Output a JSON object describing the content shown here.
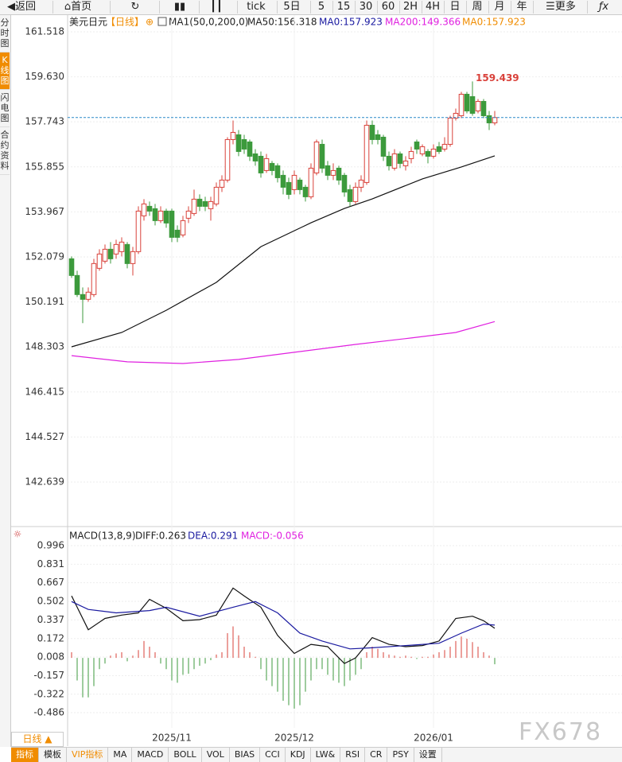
{
  "toolbar": [
    "返回",
    "首页",
    "tick",
    "5日",
    "5",
    "15",
    "30",
    "60",
    "2H",
    "4H",
    "日",
    "周",
    "月",
    "年",
    "更多"
  ],
  "sidebar": [
    "分时图",
    "K线图",
    "闪电图",
    "合约资料"
  ],
  "period_button": "日线 ▲",
  "tabs": [
    "指标",
    "模板",
    "VIP指标",
    "MA",
    "MACD",
    "BOLL",
    "VOL",
    "BIAS",
    "CCI",
    "KDJ",
    "LW&",
    "RSI",
    "CR",
    "PSY",
    "设置"
  ],
  "watermark": "FX678",
  "chart_data": [
    {
      "type": "candlestick",
      "title": "美元日元",
      "period": "【日线】",
      "legend": [
        {
          "text": "MA1(50,0,200,0)",
          "color": "#222222"
        },
        {
          "text": "MA50:156.318",
          "color": "#222222"
        },
        {
          "text": "MA0:157.923",
          "color": "#1a1aa0"
        },
        {
          "text": "MA200:149.366",
          "color": "#e020e0"
        },
        {
          "text": "MA0:157.923",
          "color": "#f08c00"
        }
      ],
      "categories": [
        null,
        null,
        null,
        null,
        null,
        null,
        null,
        null,
        null,
        null,
        null,
        null,
        null,
        null,
        null,
        null,
        null,
        null,
        "2025/11",
        null,
        null,
        null,
        null,
        null,
        null,
        null,
        null,
        null,
        null,
        null,
        null,
        null,
        null,
        null,
        null,
        null,
        null,
        null,
        null,
        null,
        "2025/12",
        null,
        null,
        null,
        null,
        null,
        null,
        null,
        null,
        null,
        null,
        null,
        null,
        null,
        null,
        null,
        null,
        null,
        null,
        null,
        null,
        null,
        null,
        null,
        null,
        "2026/01",
        null,
        null,
        null,
        null,
        null,
        null,
        null,
        null,
        null,
        null,
        null
      ],
      "candles": [
        [
          152.0,
          152.1,
          151.2,
          151.3
        ],
        [
          151.3,
          151.5,
          150.4,
          150.5
        ],
        [
          150.5,
          150.8,
          149.3,
          150.3
        ],
        [
          150.3,
          150.8,
          150.2,
          150.6
        ],
        [
          150.5,
          152.0,
          150.4,
          151.8
        ],
        [
          151.6,
          152.4,
          151.5,
          152.2
        ],
        [
          151.9,
          152.6,
          151.8,
          152.4
        ],
        [
          152.4,
          152.7,
          151.8,
          152.0
        ],
        [
          152.2,
          152.8,
          152.0,
          152.6
        ],
        [
          152.3,
          152.9,
          152.1,
          152.7
        ],
        [
          152.6,
          152.7,
          151.6,
          151.8
        ],
        [
          151.8,
          152.5,
          151.3,
          152.3
        ],
        [
          152.3,
          154.2,
          152.2,
          154.0
        ],
        [
          153.8,
          154.5,
          153.6,
          154.3
        ],
        [
          154.2,
          154.4,
          153.8,
          154.0
        ],
        [
          154.1,
          154.3,
          153.4,
          153.6
        ],
        [
          153.6,
          154.2,
          153.5,
          154.0
        ],
        [
          154.0,
          154.1,
          153.3,
          153.5
        ],
        [
          154.0,
          154.1,
          152.7,
          152.9
        ],
        [
          153.2,
          153.4,
          152.7,
          152.9
        ],
        [
          153.0,
          153.8,
          152.9,
          153.6
        ],
        [
          153.7,
          154.2,
          153.5,
          154.0
        ],
        [
          153.9,
          154.9,
          153.8,
          154.5
        ],
        [
          154.5,
          154.7,
          154.0,
          154.2
        ],
        [
          154.4,
          154.6,
          154.0,
          154.2
        ],
        [
          154.1,
          154.6,
          153.6,
          154.4
        ],
        [
          154.3,
          155.2,
          154.2,
          155.0
        ],
        [
          155.0,
          155.5,
          154.8,
          155.3
        ],
        [
          155.3,
          157.1,
          155.2,
          157.0
        ],
        [
          157.0,
          157.8,
          156.8,
          157.3
        ],
        [
          157.2,
          157.4,
          156.3,
          156.5
        ],
        [
          157.0,
          157.2,
          156.4,
          156.6
        ],
        [
          156.9,
          157.0,
          156.1,
          156.3
        ],
        [
          156.4,
          156.6,
          155.9,
          156.1
        ],
        [
          156.3,
          156.5,
          155.4,
          155.6
        ],
        [
          155.7,
          156.4,
          155.6,
          156.2
        ],
        [
          156.0,
          156.1,
          155.5,
          155.7
        ],
        [
          155.9,
          156.0,
          155.2,
          155.4
        ],
        [
          155.5,
          155.7,
          154.7,
          155.0
        ],
        [
          155.2,
          155.4,
          154.5,
          154.7
        ],
        [
          154.9,
          155.7,
          154.7,
          155.5
        ],
        [
          155.3,
          155.4,
          154.7,
          154.9
        ],
        [
          155.0,
          155.1,
          154.4,
          154.6
        ],
        [
          154.6,
          156.0,
          154.5,
          155.8
        ],
        [
          155.6,
          157.0,
          155.5,
          156.9
        ],
        [
          156.8,
          157.0,
          155.6,
          155.8
        ],
        [
          155.9,
          156.1,
          155.3,
          155.5
        ],
        [
          155.5,
          156.0,
          155.3,
          155.7
        ],
        [
          155.8,
          155.9,
          155.1,
          155.3
        ],
        [
          155.5,
          155.6,
          154.6,
          154.8
        ],
        [
          154.9,
          155.1,
          154.2,
          154.4
        ],
        [
          154.4,
          155.2,
          154.3,
          155.0
        ],
        [
          155.0,
          155.5,
          154.8,
          155.3
        ],
        [
          155.2,
          157.8,
          155.1,
          157.6
        ],
        [
          157.6,
          157.8,
          156.8,
          157.0
        ],
        [
          157.2,
          157.4,
          156.8,
          157.0
        ],
        [
          157.1,
          157.2,
          156.1,
          156.3
        ],
        [
          156.3,
          156.5,
          155.7,
          155.9
        ],
        [
          155.8,
          156.6,
          155.7,
          156.4
        ],
        [
          156.4,
          156.5,
          155.8,
          156.0
        ],
        [
          155.9,
          156.3,
          155.7,
          156.1
        ],
        [
          156.2,
          156.7,
          156.0,
          156.5
        ],
        [
          156.9,
          157.0,
          156.4,
          156.6
        ],
        [
          156.4,
          156.8,
          156.3,
          156.7
        ],
        [
          156.5,
          156.6,
          156.0,
          156.3
        ],
        [
          156.3,
          156.8,
          156.2,
          156.6
        ],
        [
          156.7,
          156.9,
          156.4,
          156.5
        ],
        [
          156.6,
          157.1,
          156.5,
          156.8
        ],
        [
          156.8,
          158.0,
          156.7,
          157.9
        ],
        [
          157.9,
          158.3,
          157.8,
          158.1
        ],
        [
          158.0,
          159.0,
          157.9,
          158.9
        ],
        [
          158.9,
          159.0,
          158.1,
          158.2
        ],
        [
          158.8,
          159.439,
          158.0,
          158.1
        ],
        [
          158.2,
          158.7,
          158.1,
          158.6
        ],
        [
          158.6,
          158.7,
          157.9,
          158.0
        ],
        [
          158.0,
          158.2,
          157.4,
          157.7
        ],
        [
          157.7,
          158.2,
          157.6,
          157.923
        ]
      ],
      "high_label_index": 72,
      "up_color": "#d9413a",
      "down_color": "#3c9a3c",
      "price_line_color": "#2a8ac8",
      "lines": [
        {
          "color": "#111111",
          "x": [
            0,
            9,
            17,
            26,
            34,
            43,
            49,
            54,
            63,
            70,
            76
          ],
          "values": [
            148.31,
            148.91,
            149.84,
            151.01,
            152.51,
            153.51,
            154.11,
            154.51,
            155.35,
            155.85,
            156.318
          ]
        },
        {
          "color": "#e020e0",
          "x": [
            0,
            10,
            20,
            30,
            40,
            51,
            61,
            69,
            76
          ],
          "values": [
            147.94,
            147.68,
            147.61,
            147.78,
            148.08,
            148.41,
            148.68,
            148.91,
            149.366
          ]
        }
      ],
      "ylim": [
        140.838,
        162.185
      ],
      "yticks": [
        161.518,
        {
          "value": 159.63,
          "label": "159.630"
        },
        157.743,
        155.855,
        153.967,
        152.079,
        150.191,
        148.303,
        146.415,
        144.527,
        142.639
      ],
      "grid": true
    },
    {
      "type": "macd",
      "title": "MACD(13,8,9)",
      "legend": [
        {
          "text": "DIFF:0.263",
          "color": "#222222"
        },
        {
          "text": "DEA:0.291",
          "color": "#1a1aa0"
        },
        {
          "text": "MACD:-0.056",
          "color": "#e020e0"
        }
      ],
      "values": [
        0.05,
        -0.2,
        -0.35,
        -0.35,
        -0.25,
        -0.1,
        -0.05,
        0.02,
        0.04,
        0.05,
        -0.03,
        0.02,
        0.07,
        0.15,
        0.1,
        0.05,
        -0.05,
        -0.1,
        -0.2,
        -0.22,
        -0.15,
        -0.14,
        -0.1,
        -0.07,
        -0.05,
        -0.02,
        0.03,
        0.05,
        0.22,
        0.28,
        0.2,
        0.1,
        0.05,
        0.01,
        -0.1,
        -0.2,
        -0.25,
        -0.3,
        -0.38,
        -0.42,
        -0.45,
        -0.42,
        -0.3,
        -0.2,
        -0.1,
        -0.1,
        -0.15,
        -0.2,
        -0.22,
        -0.25,
        -0.2,
        -0.15,
        -0.1,
        0.05,
        0.1,
        0.08,
        0.05,
        0.03,
        0.02,
        0.01,
        0.02,
        0.01,
        -0.01,
        0.01,
        0.01,
        0.03,
        0.05,
        0.07,
        0.1,
        0.15,
        0.19,
        0.17,
        0.14,
        0.1,
        0.05,
        0.02,
        -0.056
      ],
      "up_color": "#d9413a",
      "down_color": "#3c9a3c",
      "lines": [
        {
          "color": "#111111",
          "x": [
            0,
            3,
            6,
            9,
            12,
            14,
            17,
            20,
            23,
            26,
            29,
            31,
            34,
            37,
            40,
            43,
            46,
            49,
            51,
            54,
            57,
            60,
            63,
            66,
            69,
            72,
            74,
            76
          ],
          "values": [
            0.55,
            0.25,
            0.35,
            0.38,
            0.4,
            0.52,
            0.44,
            0.33,
            0.34,
            0.38,
            0.62,
            0.55,
            0.45,
            0.2,
            0.04,
            0.12,
            0.1,
            -0.05,
            0.0,
            0.18,
            0.12,
            0.1,
            0.11,
            0.15,
            0.35,
            0.37,
            0.33,
            0.263
          ]
        },
        {
          "color": "#1a1aa0",
          "x": [
            0,
            3,
            8,
            14,
            17,
            23,
            29,
            33,
            37,
            41,
            45,
            50,
            54,
            60,
            66,
            70,
            74,
            76
          ],
          "values": [
            0.5,
            0.43,
            0.4,
            0.42,
            0.45,
            0.37,
            0.45,
            0.5,
            0.4,
            0.22,
            0.15,
            0.08,
            0.09,
            0.11,
            0.13,
            0.22,
            0.3,
            0.291
          ]
        }
      ],
      "ylim": [
        -0.62,
        1.123
      ],
      "yticks": [
        0.996,
        0.831,
        0.667,
        0.502,
        0.337,
        0.172,
        0.008,
        -0.157,
        -0.322,
        -0.486
      ]
    }
  ]
}
